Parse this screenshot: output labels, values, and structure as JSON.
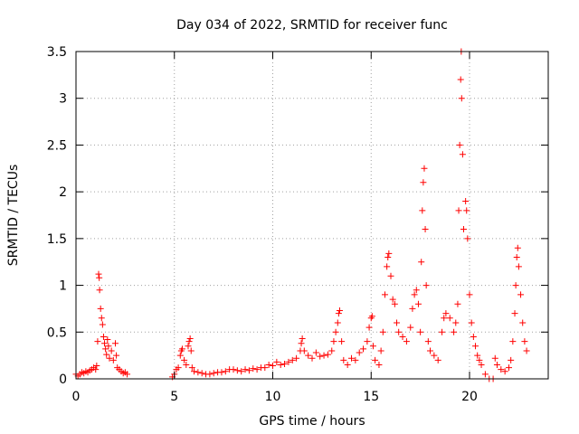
{
  "chart_data": {
    "type": "scatter",
    "title": "Day 034 of 2022, SRMTID for receiver func",
    "xlabel": "GPS time / hours",
    "ylabel": "SRMTID / TECUs",
    "xlim": [
      0,
      24
    ],
    "ylim": [
      0,
      3.5
    ],
    "grid": true,
    "marker": "+",
    "marker_color": "#ff0000",
    "xticks": [
      0,
      5,
      10,
      15,
      20
    ],
    "xtick_labels": [
      "0",
      "5",
      "10",
      "15",
      "20"
    ],
    "yticks": [
      0,
      0.5,
      1,
      1.5,
      2,
      2.5,
      3,
      3.5
    ],
    "ytick_labels": [
      "0",
      "0.5",
      "1",
      "1.5",
      "2",
      "2.5",
      "3",
      "3.5"
    ],
    "series": [
      {
        "name": "SRMTID",
        "points": [
          [
            0.0,
            0.05
          ],
          [
            0.1,
            0.03
          ],
          [
            0.2,
            0.05
          ],
          [
            0.3,
            0.07
          ],
          [
            0.4,
            0.06
          ],
          [
            0.5,
            0.08
          ],
          [
            0.6,
            0.07
          ],
          [
            0.7,
            0.09
          ],
          [
            0.8,
            0.1
          ],
          [
            0.9,
            0.12
          ],
          [
            1.0,
            0.1
          ],
          [
            1.05,
            0.14
          ],
          [
            1.1,
            0.4
          ],
          [
            1.15,
            1.12
          ],
          [
            1.18,
            1.08
          ],
          [
            1.2,
            0.95
          ],
          [
            1.25,
            0.75
          ],
          [
            1.3,
            0.65
          ],
          [
            1.35,
            0.58
          ],
          [
            1.4,
            0.45
          ],
          [
            1.45,
            0.38
          ],
          [
            1.5,
            0.32
          ],
          [
            1.55,
            0.26
          ],
          [
            1.6,
            0.42
          ],
          [
            1.65,
            0.35
          ],
          [
            1.7,
            0.22
          ],
          [
            1.8,
            0.3
          ],
          [
            1.9,
            0.2
          ],
          [
            2.0,
            0.38
          ],
          [
            2.05,
            0.25
          ],
          [
            2.1,
            0.12
          ],
          [
            2.2,
            0.1
          ],
          [
            2.3,
            0.08
          ],
          [
            2.4,
            0.06
          ],
          [
            2.5,
            0.07
          ],
          [
            2.6,
            0.05
          ],
          [
            4.9,
            0.02
          ],
          [
            5.0,
            0.05
          ],
          [
            5.1,
            0.1
          ],
          [
            5.2,
            0.12
          ],
          [
            5.3,
            0.25
          ],
          [
            5.35,
            0.3
          ],
          [
            5.4,
            0.32
          ],
          [
            5.5,
            0.2
          ],
          [
            5.6,
            0.15
          ],
          [
            5.7,
            0.35
          ],
          [
            5.75,
            0.4
          ],
          [
            5.8,
            0.43
          ],
          [
            5.85,
            0.3
          ],
          [
            5.9,
            0.12
          ],
          [
            6.0,
            0.08
          ],
          [
            6.2,
            0.07
          ],
          [
            6.4,
            0.06
          ],
          [
            6.6,
            0.05
          ],
          [
            6.8,
            0.05
          ],
          [
            7.0,
            0.06
          ],
          [
            7.2,
            0.07
          ],
          [
            7.4,
            0.07
          ],
          [
            7.6,
            0.08
          ],
          [
            7.8,
            0.1
          ],
          [
            8.0,
            0.1
          ],
          [
            8.2,
            0.09
          ],
          [
            8.4,
            0.08
          ],
          [
            8.6,
            0.1
          ],
          [
            8.8,
            0.09
          ],
          [
            9.0,
            0.11
          ],
          [
            9.2,
            0.1
          ],
          [
            9.4,
            0.12
          ],
          [
            9.6,
            0.12
          ],
          [
            9.8,
            0.15
          ],
          [
            10.0,
            0.14
          ],
          [
            10.2,
            0.18
          ],
          [
            10.4,
            0.15
          ],
          [
            10.6,
            0.16
          ],
          [
            10.8,
            0.18
          ],
          [
            11.0,
            0.2
          ],
          [
            11.2,
            0.22
          ],
          [
            11.4,
            0.3
          ],
          [
            11.45,
            0.38
          ],
          [
            11.5,
            0.43
          ],
          [
            11.6,
            0.3
          ],
          [
            11.8,
            0.25
          ],
          [
            12.0,
            0.22
          ],
          [
            12.2,
            0.28
          ],
          [
            12.4,
            0.24
          ],
          [
            12.6,
            0.25
          ],
          [
            12.8,
            0.26
          ],
          [
            13.0,
            0.3
          ],
          [
            13.1,
            0.4
          ],
          [
            13.2,
            0.5
          ],
          [
            13.3,
            0.6
          ],
          [
            13.35,
            0.7
          ],
          [
            13.4,
            0.73
          ],
          [
            13.5,
            0.4
          ],
          [
            13.6,
            0.2
          ],
          [
            13.8,
            0.15
          ],
          [
            14.0,
            0.22
          ],
          [
            14.2,
            0.2
          ],
          [
            14.4,
            0.28
          ],
          [
            14.6,
            0.32
          ],
          [
            14.8,
            0.4
          ],
          [
            14.9,
            0.55
          ],
          [
            15.0,
            0.65
          ],
          [
            15.05,
            0.67
          ],
          [
            15.1,
            0.35
          ],
          [
            15.2,
            0.2
          ],
          [
            15.4,
            0.15
          ],
          [
            15.5,
            0.3
          ],
          [
            15.6,
            0.5
          ],
          [
            15.7,
            0.9
          ],
          [
            15.8,
            1.2
          ],
          [
            15.85,
            1.3
          ],
          [
            15.9,
            1.34
          ],
          [
            16.0,
            1.1
          ],
          [
            16.1,
            0.85
          ],
          [
            16.2,
            0.8
          ],
          [
            16.3,
            0.6
          ],
          [
            16.4,
            0.5
          ],
          [
            16.6,
            0.45
          ],
          [
            16.8,
            0.4
          ],
          [
            17.0,
            0.55
          ],
          [
            17.1,
            0.75
          ],
          [
            17.2,
            0.9
          ],
          [
            17.3,
            0.95
          ],
          [
            17.4,
            0.8
          ],
          [
            17.5,
            0.5
          ],
          [
            17.55,
            1.25
          ],
          [
            17.6,
            1.8
          ],
          [
            17.65,
            2.1
          ],
          [
            17.7,
            2.25
          ],
          [
            17.75,
            1.6
          ],
          [
            17.8,
            1.0
          ],
          [
            17.9,
            0.4
          ],
          [
            18.0,
            0.3
          ],
          [
            18.2,
            0.25
          ],
          [
            18.4,
            0.2
          ],
          [
            18.6,
            0.5
          ],
          [
            18.7,
            0.65
          ],
          [
            18.8,
            0.7
          ],
          [
            19.0,
            0.65
          ],
          [
            19.2,
            0.5
          ],
          [
            19.3,
            0.6
          ],
          [
            19.4,
            0.8
          ],
          [
            19.45,
            1.8
          ],
          [
            19.5,
            2.5
          ],
          [
            19.55,
            3.2
          ],
          [
            19.58,
            3.5
          ],
          [
            19.6,
            3.0
          ],
          [
            19.65,
            2.4
          ],
          [
            19.7,
            1.6
          ],
          [
            19.8,
            1.9
          ],
          [
            19.85,
            1.8
          ],
          [
            19.9,
            1.5
          ],
          [
            20.0,
            0.9
          ],
          [
            20.1,
            0.6
          ],
          [
            20.2,
            0.45
          ],
          [
            20.3,
            0.35
          ],
          [
            20.4,
            0.25
          ],
          [
            20.5,
            0.2
          ],
          [
            20.6,
            0.15
          ],
          [
            20.8,
            0.05
          ],
          [
            21.0,
            0.0
          ],
          [
            21.2,
            0.0
          ],
          [
            21.3,
            0.22
          ],
          [
            21.4,
            0.15
          ],
          [
            21.6,
            0.1
          ],
          [
            21.8,
            0.08
          ],
          [
            22.0,
            0.12
          ],
          [
            22.1,
            0.2
          ],
          [
            22.2,
            0.4
          ],
          [
            22.3,
            0.7
          ],
          [
            22.35,
            1.0
          ],
          [
            22.4,
            1.3
          ],
          [
            22.45,
            1.4
          ],
          [
            22.5,
            1.2
          ],
          [
            22.6,
            0.9
          ],
          [
            22.7,
            0.6
          ],
          [
            22.8,
            0.4
          ],
          [
            22.9,
            0.3
          ]
        ]
      }
    ]
  }
}
